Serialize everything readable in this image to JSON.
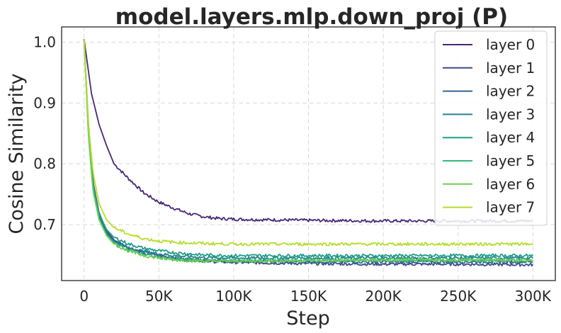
{
  "chart_data": {
    "type": "line",
    "title": "model.layers.mlp.down_proj (P)",
    "xlabel": "Step",
    "ylabel": "Cosine Similarity",
    "xlim": [
      -15000,
      315000
    ],
    "ylim": [
      0.608,
      1.025
    ],
    "xticks": [
      0,
      50000,
      100000,
      150000,
      200000,
      250000,
      300000
    ],
    "xtick_labels": [
      "0",
      "50K",
      "100K",
      "150K",
      "200K",
      "250K",
      "300K"
    ],
    "yticks": [
      0.7,
      0.8,
      0.9,
      1.0
    ],
    "ytick_labels": [
      "0.7",
      "0.8",
      "0.9",
      "1.0"
    ],
    "grid": true,
    "legend_position": "top-right",
    "series": [
      {
        "name": "layer 0",
        "color": "#482878",
        "x": [
          0,
          5000,
          10000,
          15000,
          20000,
          30000,
          40000,
          50000,
          60000,
          70000,
          80000,
          90000,
          100000,
          120000,
          150000,
          200000,
          250000,
          300000
        ],
        "y": [
          1.005,
          0.915,
          0.865,
          0.83,
          0.8,
          0.775,
          0.752,
          0.737,
          0.727,
          0.718,
          0.713,
          0.71,
          0.709,
          0.708,
          0.707,
          0.706,
          0.706,
          0.706
        ]
      },
      {
        "name": "layer 1",
        "color": "#3e4a89",
        "x": [
          0,
          3000,
          6000,
          10000,
          15000,
          20000,
          30000,
          40000,
          50000,
          60000,
          80000,
          100000,
          150000,
          200000,
          250000,
          300000
        ],
        "y": [
          1.005,
          0.86,
          0.77,
          0.72,
          0.69,
          0.675,
          0.662,
          0.655,
          0.65,
          0.645,
          0.64,
          0.638,
          0.636,
          0.635,
          0.635,
          0.634
        ]
      },
      {
        "name": "layer 2",
        "color": "#31688e",
        "x": [
          0,
          3000,
          6000,
          10000,
          15000,
          20000,
          30000,
          40000,
          50000,
          60000,
          80000,
          100000,
          150000,
          200000,
          250000,
          300000
        ],
        "y": [
          1.005,
          0.855,
          0.765,
          0.715,
          0.688,
          0.673,
          0.66,
          0.653,
          0.648,
          0.644,
          0.641,
          0.64,
          0.639,
          0.639,
          0.639,
          0.639
        ]
      },
      {
        "name": "layer 3",
        "color": "#26828e",
        "x": [
          0,
          3000,
          6000,
          10000,
          15000,
          20000,
          30000,
          40000,
          50000,
          60000,
          80000,
          100000,
          150000,
          200000,
          250000,
          300000
        ],
        "y": [
          1.005,
          0.85,
          0.76,
          0.71,
          0.685,
          0.672,
          0.661,
          0.656,
          0.652,
          0.649,
          0.646,
          0.645,
          0.645,
          0.645,
          0.645,
          0.645
        ]
      },
      {
        "name": "layer 4",
        "color": "#1f9e89",
        "x": [
          0,
          3000,
          6000,
          10000,
          15000,
          20000,
          30000,
          40000,
          50000,
          60000,
          80000,
          100000,
          150000,
          200000,
          250000,
          300000
        ],
        "y": [
          1.005,
          0.85,
          0.765,
          0.718,
          0.692,
          0.679,
          0.668,
          0.661,
          0.657,
          0.654,
          0.65,
          0.649,
          0.649,
          0.649,
          0.649,
          0.649
        ]
      },
      {
        "name": "layer 5",
        "color": "#35b779",
        "x": [
          0,
          3000,
          6000,
          10000,
          15000,
          20000,
          30000,
          40000,
          50000,
          60000,
          80000,
          100000,
          150000,
          200000,
          250000,
          300000
        ],
        "y": [
          1.005,
          0.845,
          0.755,
          0.71,
          0.683,
          0.67,
          0.658,
          0.651,
          0.646,
          0.643,
          0.641,
          0.641,
          0.641,
          0.641,
          0.641,
          0.641
        ]
      },
      {
        "name": "layer 6",
        "color": "#6ece58",
        "x": [
          0,
          3000,
          6000,
          10000,
          15000,
          20000,
          30000,
          40000,
          50000,
          60000,
          80000,
          100000,
          150000,
          200000,
          250000,
          300000
        ],
        "y": [
          1.005,
          0.845,
          0.755,
          0.708,
          0.682,
          0.668,
          0.656,
          0.649,
          0.645,
          0.642,
          0.64,
          0.64,
          0.641,
          0.642,
          0.642,
          0.642
        ]
      },
      {
        "name": "layer 7",
        "color": "#b5de2b",
        "x": [
          0,
          3000,
          6000,
          10000,
          15000,
          20000,
          30000,
          40000,
          50000,
          60000,
          80000,
          100000,
          150000,
          200000,
          250000,
          300000
        ],
        "y": [
          1.005,
          0.865,
          0.785,
          0.735,
          0.708,
          0.695,
          0.684,
          0.677,
          0.673,
          0.671,
          0.669,
          0.668,
          0.668,
          0.668,
          0.668,
          0.668
        ]
      }
    ]
  }
}
